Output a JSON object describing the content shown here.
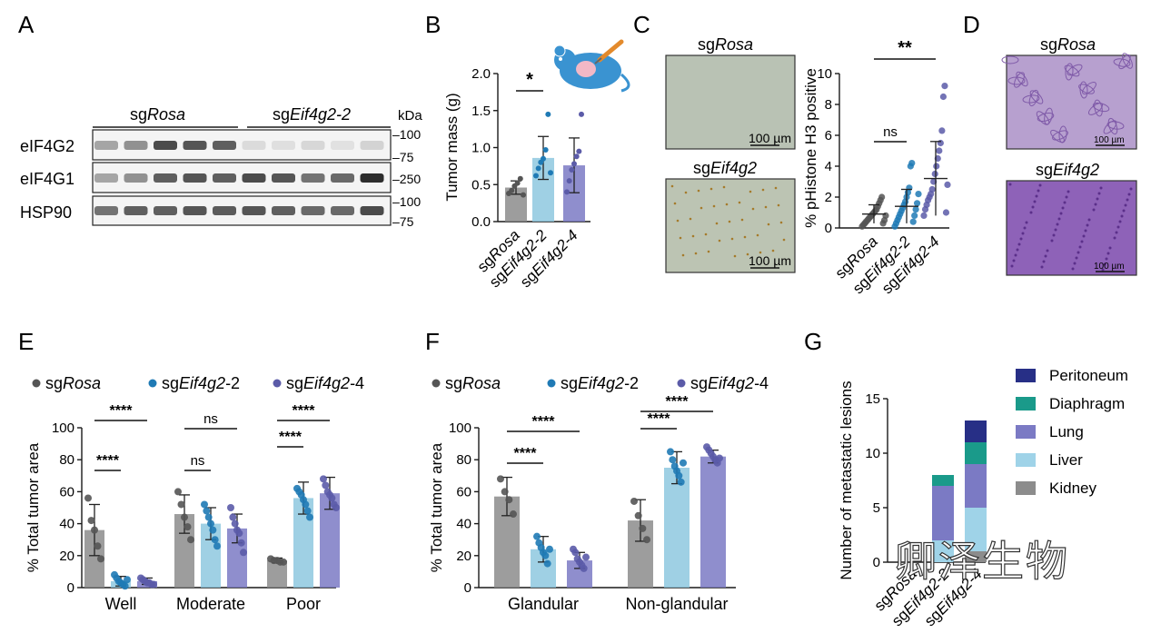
{
  "panel_labels": {
    "A": "A",
    "B": "B",
    "C": "C",
    "D": "D",
    "E": "E",
    "F": "F",
    "G": "G"
  },
  "colors": {
    "rosa": "#8c8c8c",
    "eif2": "#8ec8df",
    "eif4": "#7b7ac4",
    "rosa_dot": "#555555",
    "eif2_dot": "#1f7ab5",
    "eif4_dot": "#5b5ba8",
    "kidney": "#8c8c8c",
    "liver": "#9fd3e8",
    "lung": "#7b7ac4",
    "diaphragm": "#1a9a8a",
    "peritoneum": "#272f86"
  },
  "panelA": {
    "group1": "sgRosa",
    "group1_pre": "sg",
    "group1_it": "Rosa",
    "group2": "sgEif4g2-2",
    "group2_pre": "sg",
    "group2_it": "Eif4g2-2",
    "kda": "kDa",
    "rows": [
      {
        "label": "eIF4G2",
        "markers": [
          "100",
          "75"
        ]
      },
      {
        "label": "eIF4G1",
        "markers": [
          "250"
        ]
      },
      {
        "label": "HSP90",
        "markers": [
          "100",
          "75"
        ]
      }
    ],
    "intensities": {
      "eIF4G2": [
        0.35,
        0.45,
        0.8,
        0.75,
        0.7,
        0.08,
        0.06,
        0.1,
        0.05,
        0.12
      ],
      "eIF4G1": [
        0.35,
        0.45,
        0.7,
        0.75,
        0.7,
        0.8,
        0.75,
        0.6,
        0.65,
        0.95
      ],
      "HSP90": [
        0.6,
        0.7,
        0.7,
        0.75,
        0.72,
        0.75,
        0.7,
        0.65,
        0.65,
        0.8
      ]
    }
  },
  "panelC": {
    "top_pre": "sg",
    "top_it": "Rosa",
    "bottom_pre": "sg",
    "bottom_it": "Eif4g2",
    "scale": "100 µm"
  },
  "panelD": {
    "top_pre": "sg",
    "top_it": "Rosa",
    "bottom_pre": "sg",
    "bottom_it": "Eif4g2",
    "scale": "100 µm"
  },
  "watermark": "卿泽生物",
  "chart_data": [
    {
      "id": "B",
      "type": "bar",
      "ylabel": "Tumor mass (g)",
      "ylim": [
        0,
        2.0
      ],
      "yticks": [
        "0.0",
        "0.5",
        "1.0",
        "1.5",
        "2.0"
      ],
      "categories": [
        "sgRosa",
        "sgEif4g2-2",
        "sgEif4g2-4"
      ],
      "cat_pre": [
        "sg",
        "sg",
        "sg"
      ],
      "cat_it": [
        "Rosa",
        "Eif4g2-2",
        "Eif4g2-4"
      ],
      "values": [
        0.46,
        0.86,
        0.76
      ],
      "sd": [
        0.09,
        0.29,
        0.37
      ],
      "points": [
        [
          0.38,
          0.42,
          0.48,
          0.52,
          0.58,
          0.36
        ],
        [
          0.62,
          0.72,
          0.8,
          0.85,
          0.97,
          1.45,
          0.66
        ],
        [
          0.4,
          0.55,
          0.7,
          0.78,
          0.88,
          0.95,
          1.45
        ]
      ],
      "annotations": [
        {
          "between": [
            0,
            1
          ],
          "text": "*"
        }
      ]
    },
    {
      "id": "C",
      "type": "scatter",
      "ylabel": "% pHistone H3 positive",
      "ylim": [
        0,
        10
      ],
      "yticks": [
        "0",
        "2",
        "4",
        "6",
        "8",
        "10"
      ],
      "categories": [
        "sgRosa",
        "sgEif4g2-2",
        "sgEif4g2-4"
      ],
      "cat_pre": [
        "sg",
        "sg",
        "sg"
      ],
      "cat_it": [
        "Rosa",
        "Eif4g2-2",
        "Eif4g2-4"
      ],
      "means": [
        0.9,
        1.4,
        3.2
      ],
      "sd": [
        0.6,
        1.1,
        2.4
      ],
      "points": [
        [
          0.1,
          0.2,
          0.3,
          0.4,
          0.5,
          0.6,
          0.7,
          0.8,
          0.9,
          1.0,
          1.1,
          1.2,
          1.4,
          1.6,
          1.8,
          2.0,
          0.3,
          0.5,
          0.8
        ],
        [
          0.1,
          0.3,
          0.5,
          0.7,
          0.9,
          1.1,
          1.3,
          1.5,
          1.7,
          2.0,
          2.3,
          2.6,
          4.0,
          4.2,
          0.4,
          0.8,
          1.2,
          1.6,
          2.2
        ],
        [
          0.8,
          1.2,
          1.5,
          1.8,
          2.0,
          2.2,
          2.5,
          3.0,
          3.5,
          4.0,
          4.5,
          5.0,
          5.5,
          6.3,
          8.5,
          9.2,
          1.0,
          2.8
        ]
      ],
      "annotations": [
        {
          "between": [
            0,
            1
          ],
          "text": "ns"
        },
        {
          "between": [
            0,
            2
          ],
          "text": "**"
        }
      ]
    },
    {
      "id": "E",
      "type": "bar",
      "ylabel": "% Total tumor area",
      "ylim": [
        0,
        100
      ],
      "yticks": [
        "0",
        "20",
        "40",
        "60",
        "80",
        "100"
      ],
      "categories": [
        "Well",
        "Moderate",
        "Poor"
      ],
      "legend": [
        {
          "pre": "sg",
          "it": "Rosa",
          "post": ""
        },
        {
          "pre": "sg",
          "it": "Eif4g2",
          "post": "-2"
        },
        {
          "pre": "sg",
          "it": "Eif4g2",
          "post": "-4"
        }
      ],
      "series": [
        {
          "name": "sgRosa",
          "values": [
            36,
            46,
            17
          ],
          "sd": [
            16,
            12,
            1.5
          ],
          "points": [
            [
              56,
              42,
              36,
              26,
              18
            ],
            [
              60,
              52,
              44,
              38,
              30
            ],
            [
              18,
              17,
              17,
              16,
              16
            ]
          ]
        },
        {
          "name": "sgEif4g2-2",
          "values": [
            4,
            40,
            56
          ],
          "sd": [
            3,
            10,
            10
          ],
          "points": [
            [
              8,
              6,
              4,
              3,
              2,
              1,
              5
            ],
            [
              52,
              48,
              44,
              40,
              36,
              30,
              26
            ],
            [
              62,
              60,
              58,
              55,
              52,
              48,
              44
            ]
          ]
        },
        {
          "name": "sgEif4g2-4",
          "values": [
            4,
            37,
            59
          ],
          "sd": [
            2,
            9,
            10
          ],
          "points": [
            [
              6,
              5,
              4,
              3,
              3,
              2,
              2
            ],
            [
              50,
              44,
              40,
              36,
              34,
              28,
              22
            ],
            [
              68,
              64,
              60,
              58,
              56,
              52,
              50
            ]
          ]
        }
      ],
      "annotations": [
        {
          "group": 0,
          "between": [
            0,
            1
          ],
          "text": "****"
        },
        {
          "group": 0,
          "between": [
            0,
            2
          ],
          "text": "****"
        },
        {
          "group": 1,
          "between": [
            0,
            1
          ],
          "text": "ns"
        },
        {
          "group": 1,
          "between": [
            0,
            2
          ],
          "text": "ns"
        },
        {
          "group": 2,
          "between": [
            0,
            1
          ],
          "text": "****"
        },
        {
          "group": 2,
          "between": [
            0,
            2
          ],
          "text": "****"
        }
      ]
    },
    {
      "id": "F",
      "type": "bar",
      "ylabel": "% Total tumor area",
      "ylim": [
        0,
        100
      ],
      "yticks": [
        "0",
        "20",
        "40",
        "60",
        "80",
        "100"
      ],
      "categories": [
        "Glandular",
        "Non-glandular"
      ],
      "legend": [
        {
          "pre": "sg",
          "it": "Rosa",
          "post": ""
        },
        {
          "pre": "sg",
          "it": "Eif4g2",
          "post": "-2"
        },
        {
          "pre": "sg",
          "it": "Eif4g2",
          "post": "-4"
        }
      ],
      "series": [
        {
          "name": "sgRosa",
          "values": [
            57,
            42
          ],
          "sd": [
            12,
            13
          ],
          "points": [
            [
              68,
              60,
              55,
              46
            ],
            [
              54,
              45,
              37,
              30
            ]
          ]
        },
        {
          "name": "sgEif4g2-2",
          "values": [
            24,
            75
          ],
          "sd": [
            8,
            10
          ],
          "points": [
            [
              32,
              28,
              25,
              22,
              20,
              15,
              24
            ],
            [
              85,
              80,
              76,
              73,
              70,
              66,
              78
            ]
          ]
        },
        {
          "name": "sgEif4g2-4",
          "values": [
            17,
            82
          ],
          "sd": [
            5,
            4
          ],
          "points": [
            [
              24,
              22,
              18,
              16,
              14,
              12,
              19
            ],
            [
              88,
              86,
              84,
              82,
              80,
              78,
              81
            ]
          ]
        }
      ],
      "annotations": [
        {
          "group": 0,
          "between": [
            0,
            1
          ],
          "text": "****"
        },
        {
          "group": 0,
          "between": [
            0,
            2
          ],
          "text": "****"
        },
        {
          "group": 1,
          "between": [
            0,
            1
          ],
          "text": "****"
        },
        {
          "group": 1,
          "between": [
            0,
            2
          ],
          "text": "****"
        }
      ]
    },
    {
      "id": "G",
      "type": "bar",
      "ylabel": "Number of metastatic lesions",
      "ylim": [
        0,
        15
      ],
      "yticks": [
        "0",
        "5",
        "10",
        "15"
      ],
      "categories": [
        "sgRosa",
        "sgEif4g2-2",
        "sgEif4g2-4"
      ],
      "cat_pre": [
        "sg",
        "sg",
        "sg"
      ],
      "cat_it": [
        "Rosa",
        "Eif4g2-2",
        "Eif4g2-4"
      ],
      "stacked": true,
      "series": [
        {
          "name": "Kidney",
          "values": [
            0,
            0,
            1
          ]
        },
        {
          "name": "Liver",
          "values": [
            0,
            2,
            4
          ]
        },
        {
          "name": "Lung",
          "values": [
            0,
            5,
            4
          ]
        },
        {
          "name": "Diaphragm",
          "values": [
            0,
            1,
            2
          ]
        },
        {
          "name": "Peritoneum",
          "values": [
            0,
            0,
            2
          ]
        }
      ],
      "legend_order": [
        "Peritoneum",
        "Diaphragm",
        "Lung",
        "Liver",
        "Kidney"
      ]
    }
  ]
}
